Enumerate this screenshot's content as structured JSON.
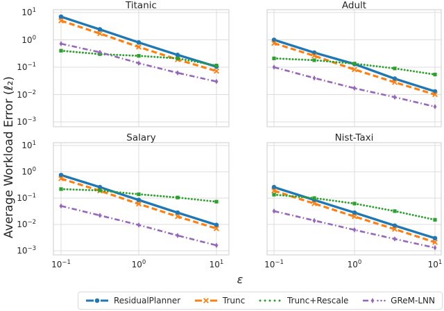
{
  "figure": {
    "ylabel": "Average Workload Error (ℓ₂)",
    "xlabel": "ε"
  },
  "legend": {
    "position": "bottom-center",
    "items": [
      {
        "label": "ResidualPlanner",
        "color": "#1f77b4",
        "linestyle": "solid",
        "marker": "circle"
      },
      {
        "label": "Trunc",
        "color": "#ff7f0e",
        "linestyle": "dashed",
        "marker": "x"
      },
      {
        "label": "Trunc+Rescale",
        "color": "#2ca02c",
        "linestyle": "dotted",
        "marker": "square"
      },
      {
        "label": "GReM-LNN",
        "color": "#9467bd",
        "linestyle": "dashdot",
        "marker": "thin-diamond"
      }
    ]
  },
  "chart_data": [
    {
      "type": "line",
      "title": "Titanic",
      "xscale": "log",
      "yscale": "log",
      "grid": true,
      "x": [
        0.1,
        0.3162,
        1,
        3.162,
        10
      ],
      "xlim": [
        0.1,
        10
      ],
      "ylim": [
        0.001,
        10
      ],
      "xticks": [
        "10^-1",
        "10^0",
        "10^1"
      ],
      "yticks": [
        "10^1",
        "10^0",
        "10^-1",
        "10^-2",
        "10^-3"
      ],
      "show_xticklabels": false,
      "show_yticklabels": true,
      "series": [
        {
          "name": "ResidualPlanner",
          "values": [
            7.0,
            2.4,
            0.8,
            0.28,
            0.105
          ]
        },
        {
          "name": "Trunc",
          "values": [
            5.0,
            1.7,
            0.55,
            0.19,
            0.072
          ]
        },
        {
          "name": "Trunc+Rescale",
          "values": [
            0.4,
            0.3,
            0.26,
            0.21,
            0.115
          ]
        },
        {
          "name": "GReM-LNN",
          "values": [
            0.72,
            0.35,
            0.14,
            0.062,
            0.03
          ]
        }
      ]
    },
    {
      "type": "line",
      "title": "Adult",
      "xscale": "log",
      "yscale": "log",
      "grid": true,
      "x": [
        0.1,
        0.3162,
        1,
        3.162,
        10
      ],
      "xlim": [
        0.1,
        10
      ],
      "ylim": [
        0.001,
        10
      ],
      "xticks": [
        "10^-1",
        "10^0",
        "10^1"
      ],
      "yticks": [
        "10^1",
        "10^0",
        "10^-1",
        "10^-2",
        "10^-3"
      ],
      "show_xticklabels": false,
      "show_yticklabels": false,
      "series": [
        {
          "name": "ResidualPlanner",
          "values": [
            1.0,
            0.34,
            0.13,
            0.038,
            0.013
          ]
        },
        {
          "name": "Trunc",
          "values": [
            0.75,
            0.26,
            0.082,
            0.028,
            0.01
          ]
        },
        {
          "name": "Trunc+Rescale",
          "values": [
            0.21,
            0.18,
            0.135,
            0.09,
            0.054
          ]
        },
        {
          "name": "GReM-LNN",
          "values": [
            0.1,
            0.04,
            0.017,
            0.008,
            0.0036
          ]
        }
      ]
    },
    {
      "type": "line",
      "title": "Salary",
      "xscale": "log",
      "yscale": "log",
      "grid": true,
      "x": [
        0.1,
        0.3162,
        1,
        3.162,
        10
      ],
      "xlim": [
        0.1,
        10
      ],
      "ylim": [
        0.001,
        10
      ],
      "xticks": [
        "10^-1",
        "10^0",
        "10^1"
      ],
      "yticks": [
        "10^1",
        "10^0",
        "10^-1",
        "10^-2",
        "10^-3"
      ],
      "show_xticklabels": true,
      "show_yticklabels": true,
      "series": [
        {
          "name": "ResidualPlanner",
          "values": [
            0.75,
            0.26,
            0.085,
            0.028,
            0.0095
          ]
        },
        {
          "name": "Trunc",
          "values": [
            0.55,
            0.19,
            0.06,
            0.02,
            0.007
          ]
        },
        {
          "name": "Trunc+Rescale",
          "values": [
            0.22,
            0.195,
            0.14,
            0.105,
            0.073
          ]
        },
        {
          "name": "GReM-LNN",
          "values": [
            0.05,
            0.022,
            0.0095,
            0.0038,
            0.0016
          ]
        }
      ]
    },
    {
      "type": "line",
      "title": "Nist-Taxi",
      "xscale": "log",
      "yscale": "log",
      "grid": true,
      "x": [
        0.1,
        0.3162,
        1,
        3.162,
        10
      ],
      "xlim": [
        0.1,
        10
      ],
      "ylim": [
        0.001,
        10
      ],
      "xticks": [
        "10^-1",
        "10^0",
        "10^1"
      ],
      "yticks": [
        "10^1",
        "10^0",
        "10^-1",
        "10^-2",
        "10^-3"
      ],
      "show_xticklabels": true,
      "show_yticklabels": false,
      "series": [
        {
          "name": "ResidualPlanner",
          "values": [
            0.26,
            0.085,
            0.028,
            0.009,
            0.003
          ]
        },
        {
          "name": "Trunc",
          "values": [
            0.19,
            0.062,
            0.02,
            0.0066,
            0.0021
          ]
        },
        {
          "name": "Trunc+Rescale",
          "values": [
            0.135,
            0.1,
            0.062,
            0.032,
            0.015
          ]
        },
        {
          "name": "GReM-LNN",
          "values": [
            0.032,
            0.014,
            0.0062,
            0.0028,
            0.0013
          ]
        }
      ]
    }
  ]
}
